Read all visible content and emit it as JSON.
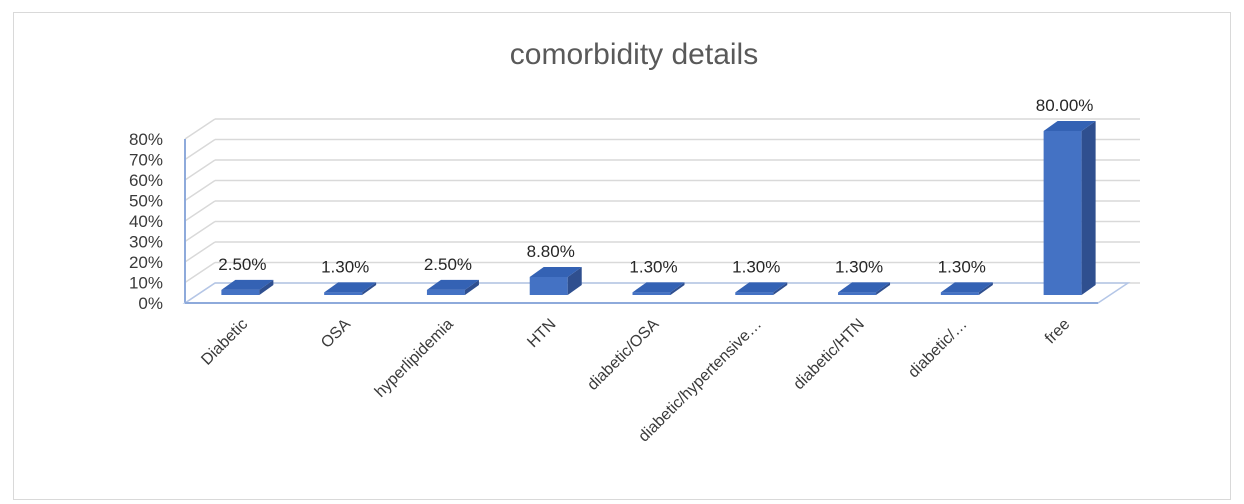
{
  "chart_data": {
    "type": "bar",
    "style": "3d-column",
    "title": "comorbidity details",
    "xlabel": "",
    "ylabel": "",
    "categories": [
      "Diabetic",
      "OSA",
      "hyperlipidemia",
      "HTN",
      "diabetic/OSA",
      "diabetic/hypertensive…",
      "diabetic/HTN",
      "diabetic/…",
      "free"
    ],
    "values": [
      2.5,
      1.3,
      2.5,
      8.8,
      1.3,
      1.3,
      1.3,
      1.3,
      80.0
    ],
    "data_labels": [
      "2.50%",
      "1.30%",
      "2.50%",
      "8.80%",
      "1.30%",
      "1.30%",
      "1.30%",
      "1.30%",
      "80.00%"
    ],
    "y_ticks": [
      "0%",
      "10%",
      "20%",
      "30%",
      "40%",
      "50%",
      "60%",
      "70%",
      "80%"
    ],
    "ylim": [
      0,
      80
    ],
    "grid": true,
    "legend": "none",
    "colors": {
      "bar_front": "#4472c4",
      "bar_top": "#3462b4",
      "bar_side": "#2f4f8f",
      "gridline": "#d9d9d9",
      "axis": "#8eaadb",
      "text": "#3a3a3a"
    }
  }
}
